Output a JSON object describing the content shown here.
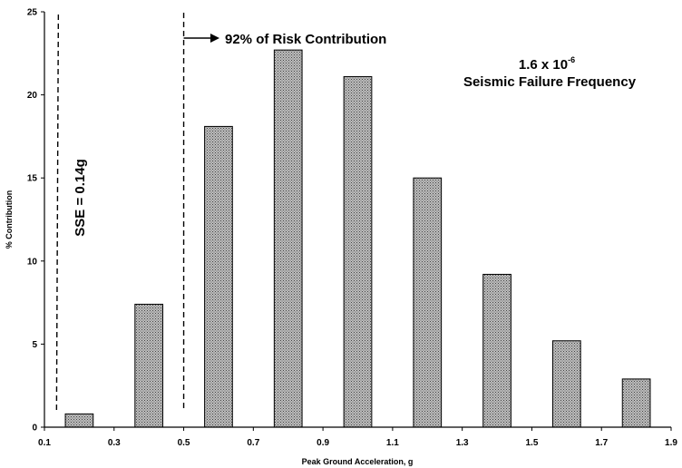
{
  "chart_data": {
    "type": "bar",
    "title": "",
    "xlabel": "Peak Ground Acceleration, g",
    "ylabel": "% Contribution",
    "xlim": [
      0.1,
      1.9
    ],
    "ylim": [
      0,
      25
    ],
    "x_ticks": [
      "0.1",
      "0.3",
      "0.5",
      "0.7",
      "0.9",
      "1.1",
      "1.3",
      "1.5",
      "1.7",
      "1.9"
    ],
    "y_ticks": [
      "0",
      "5",
      "10",
      "15",
      "20",
      "25"
    ],
    "bar_width": 0.08,
    "x": [
      0.2,
      0.4,
      0.6,
      0.8,
      1.0,
      1.2,
      1.4,
      1.6,
      1.8
    ],
    "values": [
      0.8,
      7.4,
      18.1,
      22.7,
      21.1,
      15.0,
      9.2,
      5.2,
      2.9
    ],
    "bar_color": "#9a9a9a",
    "grid": false,
    "legend": "none",
    "annotations": {
      "sse_line_x": 0.14,
      "sse_label": "SSE = 0.14g",
      "risk_line_x": 0.5,
      "risk_label": "92% of Risk Contribution",
      "frequency_mantissa": "1.6 x 10",
      "frequency_exponent": "-6",
      "frequency_label": "Seismic Failure Frequency"
    }
  }
}
